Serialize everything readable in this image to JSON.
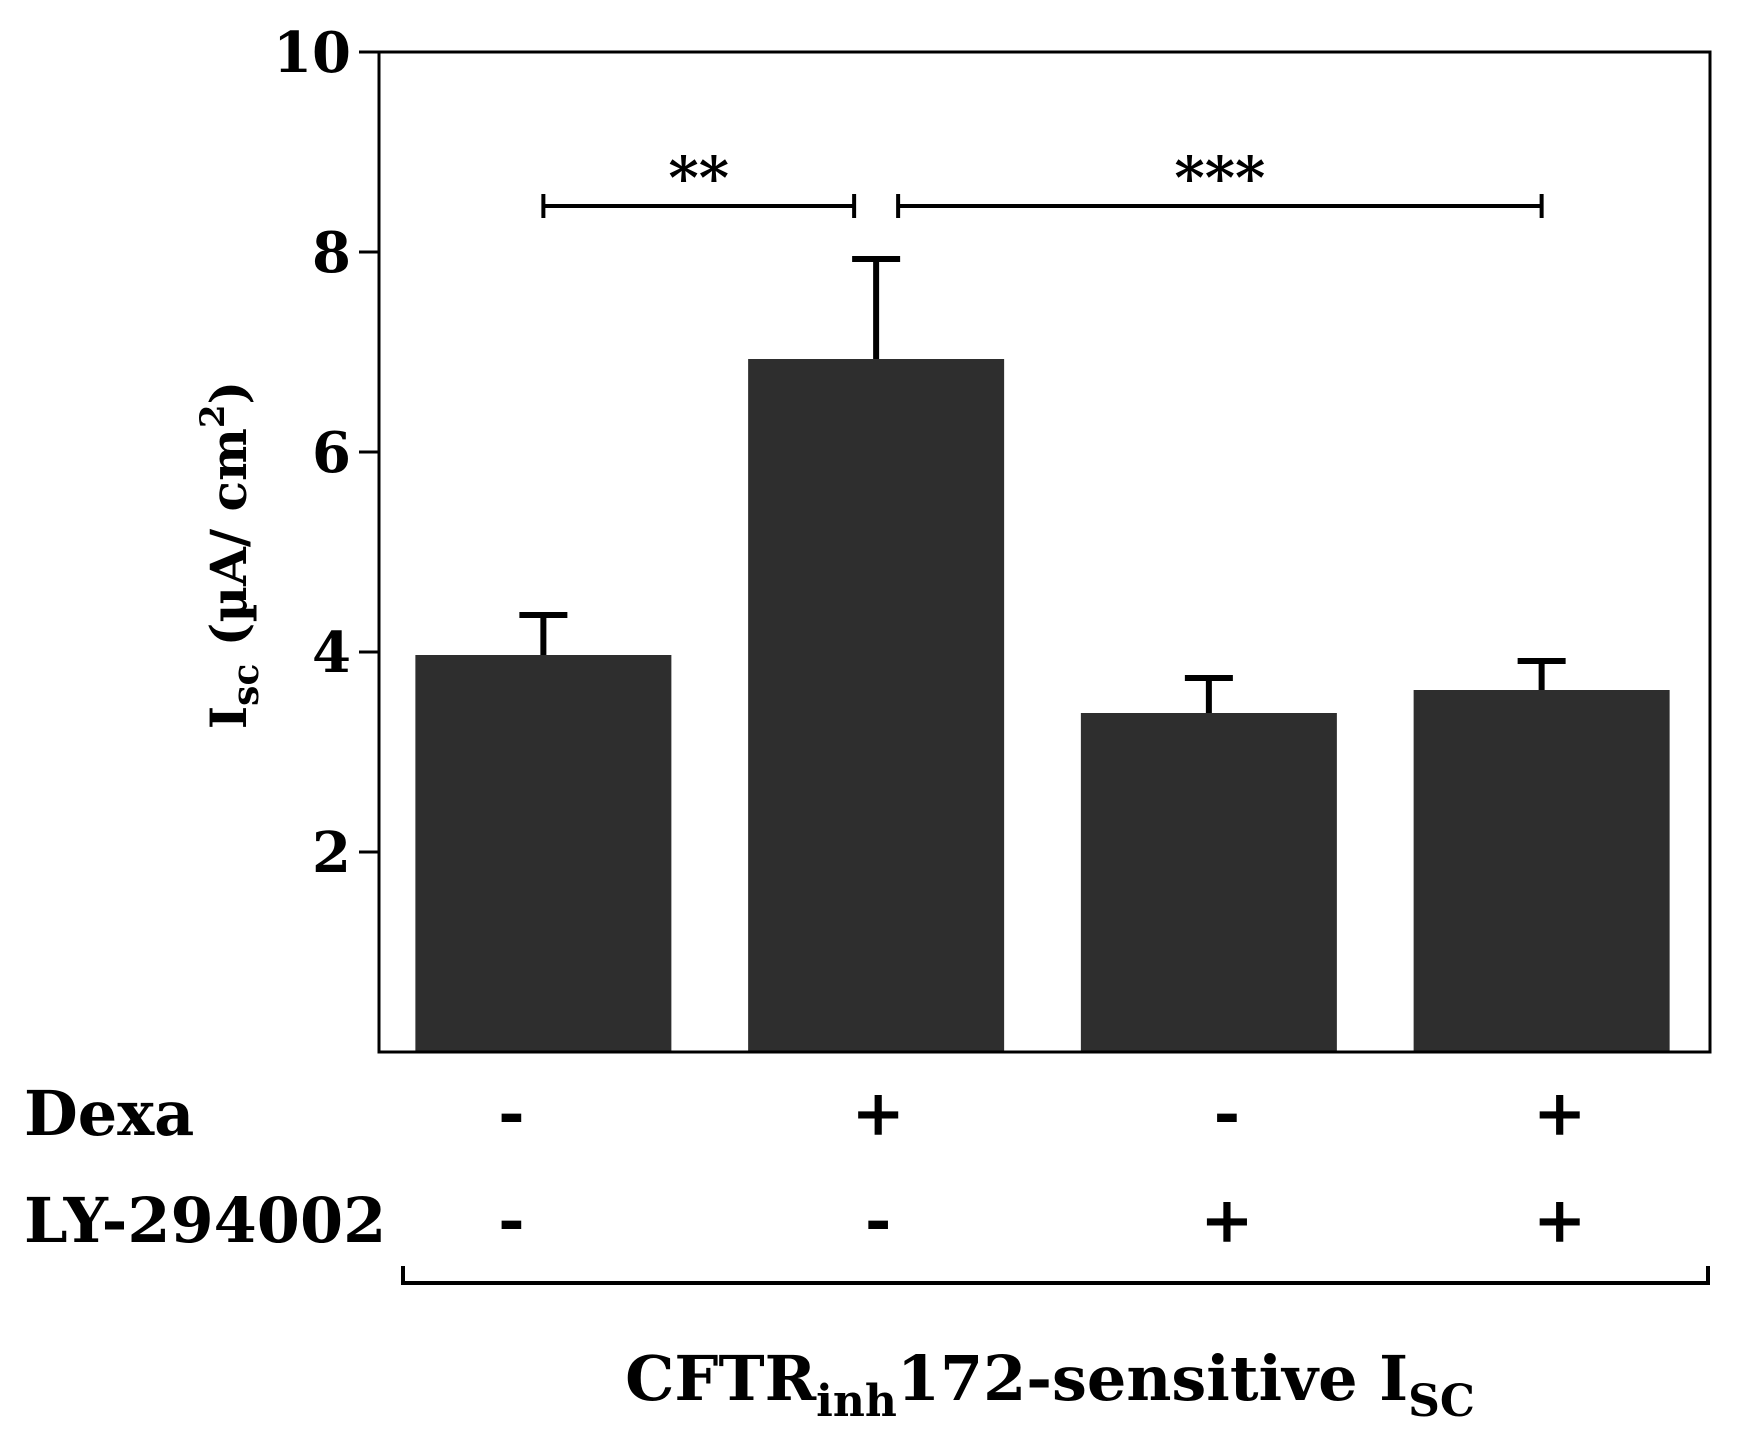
{
  "chart_data": {
    "type": "bar",
    "title": "",
    "ylabel": {
      "main": "I",
      "sub": "sc",
      "unit_open": " (µA/ cm",
      "unit_sup": "2",
      "unit_close": ")"
    },
    "ylim": [
      0,
      10
    ],
    "yticks": [
      2,
      4,
      6,
      8,
      10
    ],
    "bar_color": "#2e2e2e",
    "series": [
      {
        "name": "CFTRinh172-sensitive Isc",
        "values": [
          3.97,
          6.93,
          3.39,
          3.62
        ],
        "errors": [
          0.4,
          1.0,
          0.35,
          0.29
        ]
      }
    ],
    "conditions": [
      {
        "label": "Dexa",
        "values": [
          "-",
          "+",
          "-",
          "+"
        ]
      },
      {
        "label": "LY-294002",
        "values": [
          "-",
          "-",
          "+",
          "+"
        ]
      }
    ],
    "significance": [
      {
        "from": 0,
        "to": 1,
        "label": "**"
      },
      {
        "from": 1,
        "to": 3,
        "label": "***"
      }
    ],
    "xlabel": {
      "main": "CFTR",
      "sub": "inh",
      "rest": "172-sensitive I",
      "sub2": "SC"
    }
  }
}
